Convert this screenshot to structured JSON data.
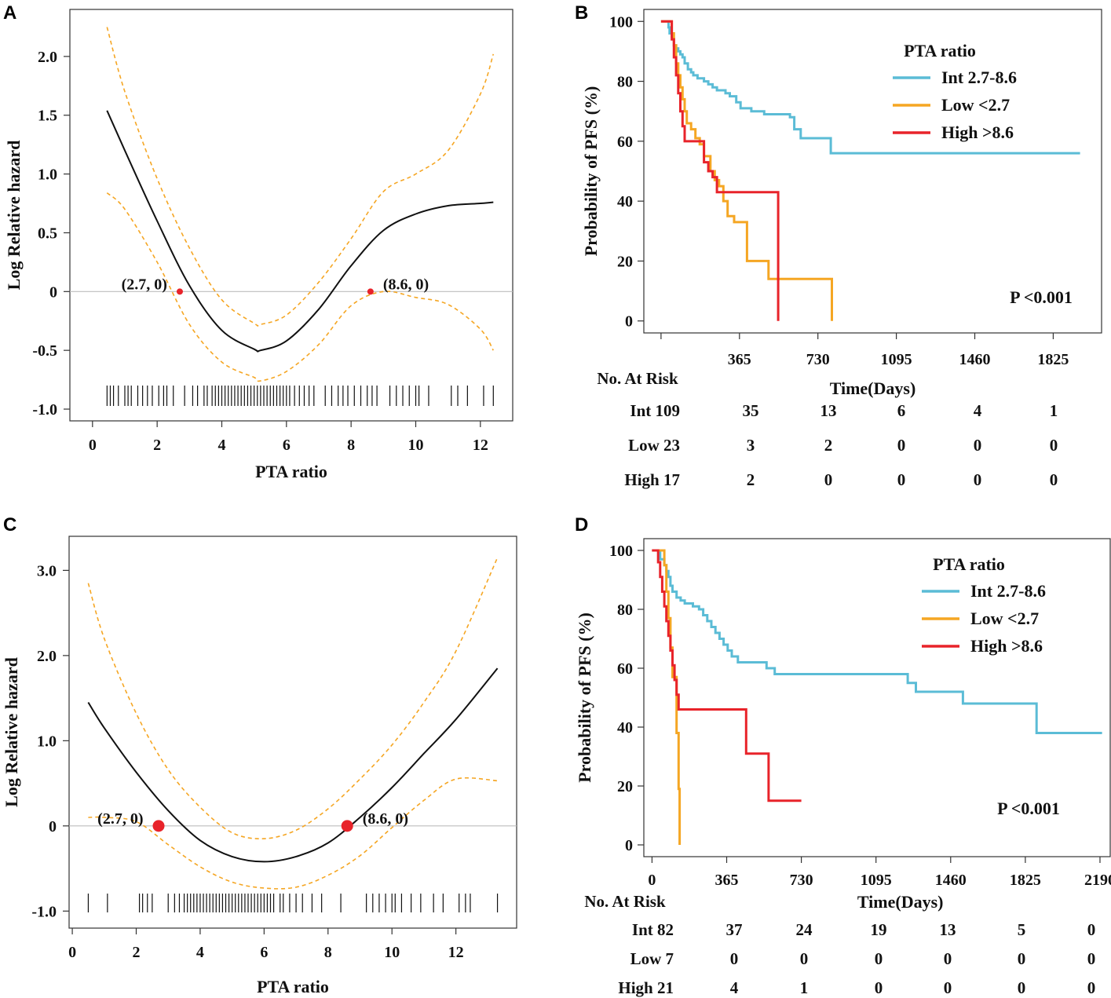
{
  "colors": {
    "int": "#5bbcd6",
    "low": "#f5a623",
    "high": "#e8232a",
    "spline": "#111111",
    "ci": "#f5a623",
    "point": "#e8232a"
  },
  "chart_data": [
    {
      "panel": "A",
      "type": "line",
      "xlabel": "PTA ratio",
      "ylabel": "Log Relative hazard",
      "xticks": [
        0,
        2,
        4,
        6,
        8,
        10,
        12
      ],
      "yticks": [
        -1.0,
        -0.5,
        0,
        0.5,
        1.0,
        1.5,
        2.0
      ],
      "ytick_labels": [
        "-1.0",
        "-0.5",
        "0",
        "0.5",
        "1.0",
        "1.5",
        "2.0"
      ],
      "xlim": [
        -0.7,
        13.0
      ],
      "ylim": [
        -1.1,
        2.4
      ],
      "series": [
        {
          "name": "fit",
          "x": [
            0.45,
            1,
            2,
            3,
            4,
            5,
            5.2,
            6,
            7,
            8,
            9,
            10,
            11,
            12,
            12.4
          ],
          "y": [
            1.54,
            1.2,
            0.6,
            0.05,
            -0.33,
            -0.49,
            -0.5,
            -0.42,
            -0.15,
            0.22,
            0.52,
            0.66,
            0.73,
            0.75,
            0.76
          ]
        },
        {
          "name": "upper",
          "x": [
            0.45,
            1,
            2,
            3,
            4,
            5,
            5.2,
            6,
            7,
            8,
            9,
            10,
            11,
            12,
            12.4
          ],
          "y": [
            2.25,
            1.7,
            0.96,
            0.37,
            -0.07,
            -0.27,
            -0.28,
            -0.2,
            0.08,
            0.45,
            0.85,
            1.0,
            1.2,
            1.68,
            2.02
          ]
        },
        {
          "name": "lower",
          "x": [
            0.45,
            1,
            2,
            3,
            4,
            5,
            5.2,
            6,
            7,
            8,
            9,
            10,
            11,
            12,
            12.4
          ],
          "y": [
            0.84,
            0.7,
            0.25,
            -0.28,
            -0.6,
            -0.73,
            -0.76,
            -0.68,
            -0.45,
            -0.12,
            0.0,
            -0.05,
            -0.11,
            -0.32,
            -0.5
          ]
        }
      ],
      "points": [
        {
          "x": 2.7,
          "y": 0,
          "label": "(2.7, 0)"
        },
        {
          "x": 8.6,
          "y": 0,
          "label": "(8.6, 0)"
        }
      ],
      "rug": [
        0.45,
        0.55,
        0.65,
        0.8,
        1.0,
        1.1,
        1.2,
        1.4,
        1.55,
        1.7,
        1.85,
        2.05,
        2.2,
        2.3,
        2.5,
        2.85,
        3.1,
        3.25,
        3.45,
        3.55,
        3.7,
        3.8,
        3.9,
        4.0,
        4.1,
        4.2,
        4.3,
        4.4,
        4.5,
        4.6,
        4.7,
        4.8,
        4.9,
        5.0,
        5.1,
        5.2,
        5.3,
        5.4,
        5.5,
        5.6,
        5.7,
        5.8,
        5.9,
        6.0,
        6.1,
        6.25,
        6.4,
        6.55,
        6.7,
        6.85,
        7.2,
        7.4,
        7.6,
        7.75,
        7.9,
        8.1,
        8.3,
        8.5,
        8.65,
        8.8,
        9.2,
        9.4,
        9.6,
        9.8,
        10.0,
        10.1,
        10.4,
        11.1,
        11.3,
        11.6,
        12.1,
        12.4
      ]
    },
    {
      "panel": "B",
      "type": "line",
      "xlabel": "Time(Days)",
      "ylabel": "Probability of PFS (%)",
      "xticks": [
        0,
        365,
        730,
        1095,
        1460,
        1825
      ],
      "xtick_labels": [
        "",
        "365",
        "730",
        "1095",
        "1460",
        "1825"
      ],
      "yticks": [
        0,
        20,
        40,
        60,
        80,
        100
      ],
      "xlim": [
        -80,
        2050
      ],
      "ylim": [
        -4,
        104
      ],
      "legend": {
        "title": "PTA ratio",
        "entries": [
          "Int    2.7-8.6",
          "Low  <2.7",
          "High  >8.6"
        ],
        "placement": "top-right"
      },
      "pvalue": "P <0.001",
      "series": [
        {
          "name": "Int",
          "x": [
            0,
            30,
            35,
            40,
            50,
            55,
            60,
            70,
            80,
            90,
            100,
            110,
            125,
            140,
            150,
            170,
            200,
            220,
            240,
            260,
            300,
            320,
            350,
            370,
            420,
            480,
            600,
            620,
            650,
            720,
            790,
            1000,
            1300,
            1500,
            1950
          ],
          "y": [
            100,
            100,
            98,
            96,
            95,
            94,
            92,
            91,
            90,
            89,
            88,
            86,
            84,
            83,
            82,
            81,
            80,
            79,
            78,
            77,
            76,
            75,
            73,
            71,
            70,
            69,
            68,
            64,
            61,
            61,
            56,
            56,
            56,
            56,
            56
          ]
        },
        {
          "name": "Low",
          "x": [
            0,
            30,
            50,
            60,
            70,
            80,
            90,
            100,
            110,
            120,
            140,
            160,
            180,
            200,
            230,
            250,
            270,
            290,
            310,
            340,
            400,
            500,
            700,
            790,
            795
          ],
          "y": [
            100,
            100,
            96,
            92,
            86,
            82,
            78,
            74,
            70,
            66,
            64,
            61,
            59,
            55,
            50,
            47,
            45,
            40,
            35,
            33,
            20,
            14,
            14,
            14,
            0
          ]
        },
        {
          "name": "High",
          "x": [
            0,
            40,
            50,
            60,
            70,
            80,
            90,
            100,
            110,
            150,
            180,
            200,
            220,
            240,
            260,
            300,
            400,
            500,
            540,
            545
          ],
          "y": [
            100,
            100,
            94,
            88,
            82,
            76,
            70,
            65,
            60,
            60,
            60,
            53,
            50,
            48,
            43,
            43,
            43,
            43,
            43,
            0
          ]
        }
      ],
      "risk_table": {
        "title": "No. At Risk",
        "rows": [
          {
            "label": "Int 109",
            "values": [
              "35",
              "13",
              "6",
              "4",
              "1"
            ]
          },
          {
            "label": "Low 23",
            "values": [
              "3",
              "2",
              "0",
              "0",
              "0"
            ]
          },
          {
            "label": "High 17",
            "values": [
              "2",
              "0",
              "0",
              "0",
              "0"
            ]
          }
        ]
      }
    },
    {
      "panel": "C",
      "type": "line",
      "xlabel": "PTA ratio",
      "ylabel": "Log Relative hazard",
      "xticks": [
        0,
        2,
        4,
        6,
        8,
        10,
        12
      ],
      "yticks": [
        -1.0,
        0,
        1.0,
        2.0,
        3.0
      ],
      "ytick_labels": [
        "-1.0",
        "0",
        "1.0",
        "2.0",
        "3.0"
      ],
      "xlim": [
        -0.1,
        13.9
      ],
      "ylim": [
        -1.2,
        3.4
      ],
      "series": [
        {
          "name": "fit",
          "x": [
            0.5,
            1,
            2,
            3,
            4,
            5,
            6,
            7,
            8,
            9,
            10,
            11,
            12,
            13.3
          ],
          "y": [
            1.45,
            1.15,
            0.63,
            0.18,
            -0.17,
            -0.36,
            -0.42,
            -0.36,
            -0.2,
            0.1,
            0.45,
            0.85,
            1.25,
            1.85
          ]
        },
        {
          "name": "upper",
          "x": [
            0.5,
            1,
            2,
            3,
            4,
            5,
            6,
            7,
            8,
            9,
            10,
            11,
            12,
            13.3
          ],
          "y": [
            2.85,
            2.2,
            1.32,
            0.66,
            0.22,
            -0.08,
            -0.15,
            -0.05,
            0.2,
            0.55,
            0.95,
            1.45,
            2.05,
            3.15
          ]
        },
        {
          "name": "lower",
          "x": [
            0.5,
            1,
            2,
            3,
            4,
            5,
            6,
            7,
            8,
            9,
            10,
            11,
            12,
            13.3
          ],
          "y": [
            0.1,
            0.1,
            0.05,
            -0.22,
            -0.48,
            -0.66,
            -0.73,
            -0.72,
            -0.58,
            -0.35,
            -0.02,
            0.3,
            0.55,
            0.53
          ]
        }
      ],
      "points": [
        {
          "x": 2.7,
          "y": 0,
          "label": "(2.7, 0)"
        },
        {
          "x": 8.6,
          "y": 0,
          "label": "(8.6, 0)"
        }
      ],
      "rug": [
        0.5,
        1.1,
        2.1,
        2.2,
        2.35,
        2.5,
        3.0,
        3.2,
        3.35,
        3.5,
        3.6,
        3.7,
        3.8,
        3.9,
        4.0,
        4.1,
        4.2,
        4.3,
        4.4,
        4.5,
        4.6,
        4.7,
        4.8,
        4.9,
        5.0,
        5.1,
        5.2,
        5.3,
        5.4,
        5.5,
        5.6,
        5.7,
        5.8,
        5.9,
        6.0,
        6.1,
        6.2,
        6.3,
        6.5,
        6.6,
        6.8,
        7.0,
        7.2,
        7.5,
        7.8,
        8.4,
        9.2,
        9.4,
        9.6,
        9.8,
        10.0,
        10.1,
        10.3,
        10.6,
        10.9,
        11.3,
        11.6,
        12.1,
        12.3,
        12.45,
        13.3
      ]
    },
    {
      "panel": "D",
      "type": "line",
      "xlabel": "Time(Days)",
      "ylabel": "Probability of PFS (%)",
      "xticks": [
        0,
        365,
        730,
        1095,
        1460,
        1825,
        2190
      ],
      "xtick_labels": [
        "0",
        "365",
        "730",
        "1095",
        "1460",
        "1825",
        "2190"
      ],
      "yticks": [
        0,
        20,
        40,
        60,
        80,
        100
      ],
      "xlim": [
        -40,
        2240
      ],
      "ylim": [
        -4,
        104
      ],
      "legend": {
        "title": "PTA ratio",
        "entries": [
          "Int    2.7-8.6",
          "Low  <2.7",
          "High  >8.6"
        ],
        "placement": "top-right"
      },
      "pvalue": "P <0.001",
      "series": [
        {
          "name": "Int",
          "x": [
            0,
            30,
            40,
            60,
            70,
            80,
            90,
            100,
            120,
            140,
            160,
            200,
            230,
            250,
            270,
            290,
            310,
            330,
            350,
            370,
            390,
            420,
            500,
            560,
            600,
            1000,
            1220,
            1250,
            1290,
            1480,
            1520,
            1850,
            1880,
            2200
          ],
          "y": [
            100,
            100,
            97,
            95,
            93,
            91,
            88,
            86,
            84,
            83,
            82,
            81,
            80,
            78,
            76,
            74,
            72,
            70,
            68,
            66,
            64,
            62,
            62,
            60,
            58,
            58,
            58,
            55,
            52,
            52,
            48,
            48,
            38,
            38
          ]
        },
        {
          "name": "Low",
          "x": [
            0,
            40,
            60,
            70,
            80,
            90,
            100,
            120,
            130,
            135
          ],
          "y": [
            100,
            100,
            95,
            86,
            77,
            67,
            57,
            38,
            19,
            0
          ]
        },
        {
          "name": "High",
          "x": [
            0,
            20,
            30,
            40,
            50,
            60,
            70,
            80,
            90,
            100,
            110,
            120,
            130,
            450,
            460,
            560,
            570,
            730
          ],
          "y": [
            100,
            100,
            96,
            91,
            86,
            81,
            76,
            71,
            66,
            61,
            56,
            51,
            46,
            46,
            31,
            31,
            15,
            15
          ]
        }
      ],
      "risk_table": {
        "title": "No. At Risk",
        "rows": [
          {
            "label": "Int  82",
            "values": [
              "37",
              "24",
              "19",
              "13",
              "5",
              "0"
            ]
          },
          {
            "label": "Low   7",
            "values": [
              "0",
              "0",
              "0",
              "0",
              "0",
              "0"
            ]
          },
          {
            "label": "High 21",
            "values": [
              "4",
              "1",
              "0",
              "0",
              "0",
              "0"
            ]
          }
        ]
      }
    }
  ]
}
